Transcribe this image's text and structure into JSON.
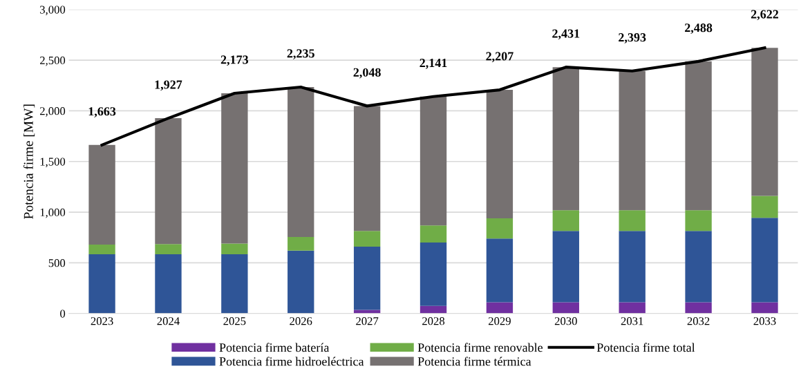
{
  "chart_data": {
    "type": "bar",
    "stacked": true,
    "ylabel": "Potencia firme [MW]",
    "categories": [
      "2023",
      "2024",
      "2025",
      "2026",
      "2027",
      "2028",
      "2029",
      "2030",
      "2031",
      "2032",
      "2033"
    ],
    "series": [
      {
        "name": "Potencia firme batería",
        "color": "#7030a0",
        "values": [
          0,
          0,
          0,
          0,
          35,
          75,
          110,
          110,
          110,
          110,
          110
        ]
      },
      {
        "name": "Potencia firme hidroeléctrica",
        "color": "#2f5597",
        "values": [
          585,
          585,
          585,
          620,
          625,
          625,
          630,
          705,
          705,
          705,
          835
        ]
      },
      {
        "name": "Potencia firme renovable",
        "color": "#70ad47",
        "values": [
          95,
          100,
          105,
          135,
          155,
          170,
          200,
          205,
          205,
          205,
          215
        ]
      },
      {
        "name": "Potencia firme térmica",
        "color": "#767171",
        "values": [
          983,
          1242,
          1483,
          1480,
          1233,
          1271,
          1267,
          1411,
          1373,
          1468,
          1462
        ]
      },
      {
        "name": "Potencia firme total",
        "type": "line",
        "color": "#000000",
        "values": [
          1663,
          1927,
          2173,
          2235,
          2048,
          2141,
          2207,
          2431,
          2393,
          2488,
          2622
        ],
        "value_labels": [
          "1,663",
          "1,927",
          "2,173",
          "2,235",
          "2,048",
          "2,141",
          "2,207",
          "2,431",
          "2,393",
          "2,488",
          "2,622"
        ]
      }
    ],
    "ylim": [
      0,
      3000
    ],
    "yticks": [
      {
        "value": 0,
        "label": "0"
      },
      {
        "value": 500,
        "label": "500"
      },
      {
        "value": 1000,
        "label": "1,000"
      },
      {
        "value": 1500,
        "label": "1,500"
      },
      {
        "value": 2000,
        "label": "2,000"
      },
      {
        "value": 2500,
        "label": "2,500"
      },
      {
        "value": 3000,
        "label": "3,000"
      }
    ],
    "grid": "y",
    "legend": "bottom"
  }
}
